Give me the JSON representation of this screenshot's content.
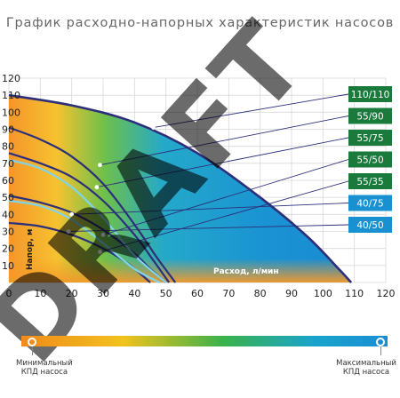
{
  "title": "График расходно-напорных характеристик насосов",
  "chart_data": {
    "type": "line",
    "xlabel": "Расход, л/мин",
    "ylabel": "Напор, м",
    "xlim": [
      0,
      120
    ],
    "ylim": [
      0,
      120
    ],
    "xticks": [
      "0",
      "10",
      "20",
      "30",
      "40",
      "50",
      "60",
      "70",
      "80",
      "90",
      "100",
      "110",
      "120"
    ],
    "yticks": [
      "10",
      "20",
      "30",
      "40",
      "50",
      "60",
      "70",
      "80",
      "90",
      "100",
      "110",
      "120"
    ],
    "grid": true,
    "series": [
      {
        "name": "110/110",
        "color": "#1a7a3c",
        "line": "#2c2f7a",
        "x": [
          0,
          20,
          40,
          60,
          80,
          95,
          105,
          109
        ],
        "y": [
          110,
          104,
          94,
          76,
          50,
          27,
          8,
          0
        ],
        "marker": [
          46,
          91
        ]
      },
      {
        "name": "55/90",
        "color": "#1a7a3c",
        "line": "#2c2f7a",
        "x": [
          0,
          10,
          20,
          30,
          40,
          47,
          53
        ],
        "y": [
          91,
          84,
          74,
          58,
          34,
          15,
          0
        ],
        "marker": [
          29,
          69
        ]
      },
      {
        "name": "55/75",
        "color": "#1a7a3c",
        "line": "#2c2f7a",
        "x": [
          0,
          10,
          20,
          30,
          40,
          46,
          51
        ],
        "y": [
          76,
          70,
          62,
          48,
          28,
          13,
          0
        ],
        "marker": [
          28,
          56
        ]
      },
      {
        "name": "55/50",
        "color": "#1a7a3c",
        "line": "#2c2f7a",
        "x": [
          0,
          10,
          20,
          30,
          40,
          45,
          50
        ],
        "y": [
          51,
          47,
          41,
          31,
          17,
          8,
          0
        ],
        "marker": [
          30,
          28
        ]
      },
      {
        "name": "55/35",
        "color": "#1a7a3c",
        "line": "#2c2f7a",
        "x": [
          0,
          10,
          20,
          30,
          38,
          45
        ],
        "y": [
          35,
          33,
          28,
          20,
          11,
          0
        ],
        "marker": [
          29,
          18
        ]
      },
      {
        "name": "40/75",
        "color": "#1990d0",
        "line": "#7fd4ea",
        "x": [
          0,
          10,
          20,
          30,
          40,
          50
        ],
        "y": [
          72,
          67,
          56,
          38,
          16,
          0
        ],
        "marker": [
          20,
          40
        ]
      },
      {
        "name": "40/50",
        "color": "#1990d0",
        "line": "#7fd4ea",
        "x": [
          0,
          10,
          20,
          30,
          40,
          48
        ],
        "y": [
          48,
          45,
          37,
          23,
          8,
          0
        ],
        "marker": [
          19,
          30
        ]
      }
    ]
  },
  "efficiency_scale": {
    "min_label": [
      "Минимальный",
      "КПД насоса"
    ],
    "max_label": [
      "Максимальный",
      "КПД насоса"
    ]
  },
  "watermark": "DRAFT"
}
